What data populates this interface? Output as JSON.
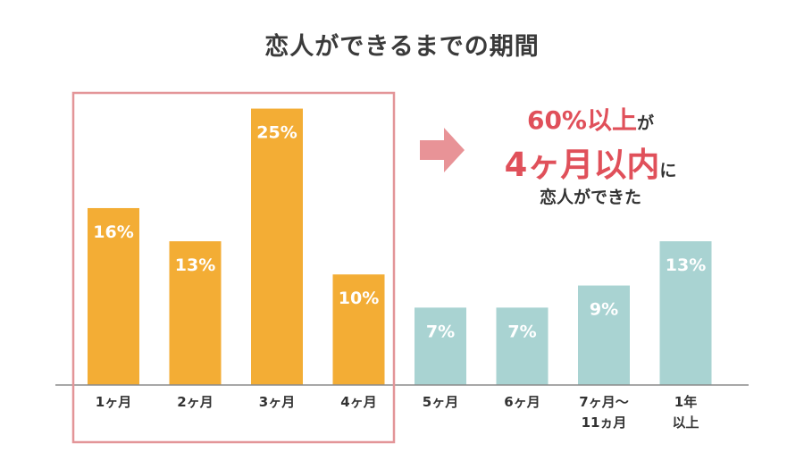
{
  "chart_data": {
    "type": "bar",
    "title": "恋人ができるまでの期間",
    "categories": [
      [
        "1ヶ月"
      ],
      [
        "2ヶ月"
      ],
      [
        "3ヶ月"
      ],
      [
        "4ヶ月"
      ],
      [
        "5ヶ月"
      ],
      [
        "6ヶ月"
      ],
      [
        "7ヶ月〜",
        "11ヵ月"
      ],
      [
        "1年",
        "以上"
      ]
    ],
    "values": [
      16,
      13,
      25,
      10,
      7,
      7,
      9,
      13
    ],
    "labels": [
      "16%",
      "13%",
      "25%",
      "10%",
      "7%",
      "7%",
      "9%",
      "13%"
    ],
    "ylim": [
      0,
      26.5
    ],
    "highlighted_categories": 4,
    "grid": false,
    "colors": {
      "highlight": "#f3ad35",
      "other": "#a9d3d2",
      "frame": "#e39598",
      "arrow": "#e89397",
      "accent": "#e0505a",
      "axis": "#8a8a8a"
    }
  },
  "callout": {
    "line1_highlight": "60%以上",
    "line1_rest": "が",
    "line2_highlight": "4ヶ月以内",
    "line2_rest": "に",
    "line3": "恋人ができた"
  }
}
